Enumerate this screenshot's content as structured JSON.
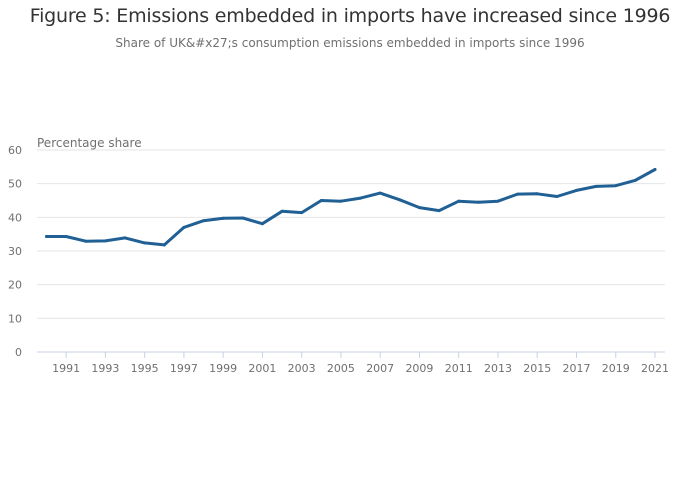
{
  "header": {
    "title": "Figure 5: Emissions embedded in imports have increased since 1996",
    "subtitle": "Share of UK&#x27;s consumption emissions embedded in imports since 1996"
  },
  "colors": {
    "line": "#206095",
    "grid": "#e6e6e6",
    "axis": "#c8d2e6"
  },
  "chart_data": {
    "type": "line",
    "title": "Figure 5: Emissions embedded in imports have increased since 1996",
    "subtitle": "Share of UK&#x27;s consumption emissions embedded in imports since 1996",
    "xlabel": "",
    "ylabel": "Percentage share",
    "xlim": [
      1990,
      2021
    ],
    "ylim": [
      0,
      60
    ],
    "yticks": [
      0,
      10,
      20,
      30,
      40,
      50,
      60
    ],
    "xticks": [
      1991,
      1993,
      1995,
      1997,
      1999,
      2001,
      2003,
      2005,
      2007,
      2009,
      2011,
      2013,
      2015,
      2017,
      2019,
      2021
    ],
    "grid": true,
    "legend": "none",
    "x": [
      1990,
      1991,
      1992,
      1993,
      1994,
      1995,
      1996,
      1997,
      1998,
      1999,
      2000,
      2001,
      2002,
      2003,
      2004,
      2005,
      2006,
      2007,
      2008,
      2009,
      2010,
      2011,
      2012,
      2013,
      2014,
      2015,
      2016,
      2017,
      2018,
      2019,
      2020,
      2021
    ],
    "series": [
      {
        "name": "Percentage share",
        "values": [
          34.3,
          34.3,
          32.9,
          33.0,
          33.9,
          32.4,
          31.8,
          37.0,
          39.0,
          39.7,
          39.8,
          38.1,
          41.8,
          41.4,
          45.0,
          44.8,
          45.7,
          47.2,
          45.2,
          42.9,
          42.0,
          44.8,
          44.5,
          44.8,
          46.9,
          47.0,
          46.2,
          48.0,
          49.2,
          49.4,
          51.0,
          54.2
        ]
      }
    ]
  }
}
